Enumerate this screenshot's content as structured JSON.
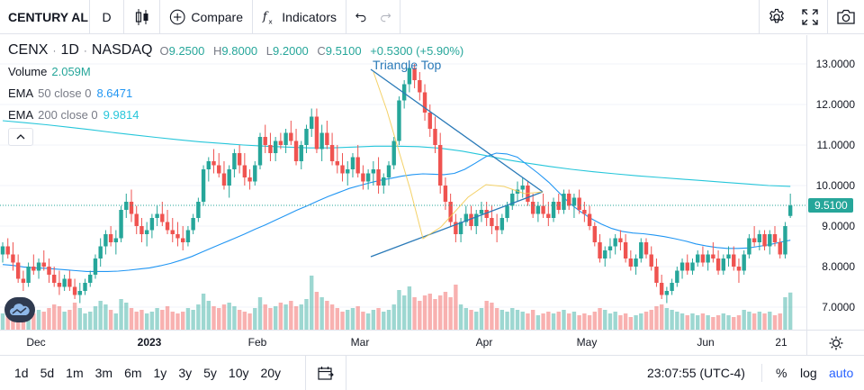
{
  "toolbar": {
    "symbol": "CENTURY AL",
    "interval": "D",
    "compare_label": "Compare",
    "indicators_label": "Indicators"
  },
  "legend": {
    "ticker": "CENX",
    "interval": "1D",
    "exchange": "NASDAQ",
    "open_key": "O",
    "open": "9.2500",
    "high_key": "H",
    "high": "9.8000",
    "low_key": "L",
    "low": "9.2000",
    "close_key": "C",
    "close": "9.5100",
    "change": "+0.5300 (+5.90%)",
    "volume_label": "Volume",
    "volume_value": "2.059M",
    "ema50_name": "EMA",
    "ema50_params": "50 close 0",
    "ema50_value": "8.6471",
    "ema200_name": "EMA",
    "ema200_params": "200 close 0",
    "ema200_value": "9.9814"
  },
  "drawing": {
    "label": "Triangle Top"
  },
  "price_axis": {
    "ticks": [
      "13.0000",
      "12.0000",
      "11.0000",
      "10.0000",
      "9.0000",
      "8.0000",
      "7.0000"
    ],
    "last_price": "9.5100"
  },
  "time_axis": {
    "ticks": [
      {
        "label": "Dec",
        "bold": false
      },
      {
        "label": "2023",
        "bold": true
      },
      {
        "label": "Feb",
        "bold": false
      },
      {
        "label": "Mar",
        "bold": false
      },
      {
        "label": "Apr",
        "bold": false
      },
      {
        "label": "May",
        "bold": false
      },
      {
        "label": "Jun",
        "bold": false
      },
      {
        "label": "21",
        "bold": false
      }
    ]
  },
  "bottom": {
    "ranges": [
      "1d",
      "5d",
      "1m",
      "3m",
      "6m",
      "1y",
      "3y",
      "5y",
      "10y",
      "20y"
    ],
    "clock": "23:07:55 (UTC-4)",
    "percent_label": "%",
    "log_label": "log",
    "auto_label": "auto"
  },
  "colors": {
    "up": "#26a69a",
    "down": "#ef5350",
    "ema50": "#2196f3",
    "ema200": "#26c6da",
    "accent": "#2962ff"
  },
  "chart_data": {
    "type": "candlestick",
    "ylim": [
      6.5,
      13.6
    ],
    "price_ticks": [
      13,
      12,
      11,
      10,
      9,
      8,
      7
    ],
    "candles": [
      [
        8.3,
        8.6,
        8.1,
        8.5
      ],
      [
        8.5,
        8.7,
        8.2,
        8.3
      ],
      [
        8.3,
        8.6,
        7.9,
        8.1
      ],
      [
        8.1,
        8.3,
        7.6,
        7.7
      ],
      [
        7.7,
        7.9,
        7.4,
        7.6
      ],
      [
        7.6,
        8.1,
        7.5,
        8.0
      ],
      [
        8.0,
        8.3,
        7.8,
        7.9
      ],
      [
        7.9,
        8.2,
        7.7,
        8.1
      ],
      [
        8.1,
        8.4,
        7.9,
        8.0
      ],
      [
        8.0,
        8.2,
        7.6,
        7.8
      ],
      [
        7.8,
        8.0,
        7.5,
        7.6
      ],
      [
        7.6,
        7.9,
        7.3,
        7.5
      ],
      [
        7.5,
        7.8,
        7.4,
        7.7
      ],
      [
        7.7,
        7.9,
        7.4,
        7.5
      ],
      [
        7.5,
        7.7,
        7.2,
        7.3
      ],
      [
        7.3,
        7.6,
        7.1,
        7.4
      ],
      [
        7.4,
        7.7,
        7.3,
        7.6
      ],
      [
        7.6,
        7.9,
        7.5,
        7.8
      ],
      [
        7.8,
        8.3,
        7.7,
        8.2
      ],
      [
        8.2,
        8.7,
        8.0,
        8.5
      ],
      [
        8.5,
        8.9,
        8.3,
        8.8
      ],
      [
        8.8,
        9.0,
        8.5,
        8.6
      ],
      [
        8.6,
        8.9,
        8.3,
        8.7
      ],
      [
        8.7,
        9.5,
        8.6,
        9.4
      ],
      [
        9.4,
        9.8,
        9.2,
        9.6
      ],
      [
        9.6,
        9.9,
        9.1,
        9.3
      ],
      [
        9.3,
        9.5,
        8.8,
        9.0
      ],
      [
        9.0,
        9.2,
        8.6,
        8.8
      ],
      [
        8.8,
        9.1,
        8.5,
        8.9
      ],
      [
        8.9,
        9.3,
        8.7,
        9.2
      ],
      [
        9.2,
        9.5,
        9.0,
        9.3
      ],
      [
        9.3,
        9.6,
        9.0,
        9.1
      ],
      [
        9.1,
        9.4,
        8.8,
        8.9
      ],
      [
        8.9,
        9.2,
        8.6,
        8.8
      ],
      [
        8.8,
        9.1,
        8.5,
        8.7
      ],
      [
        8.7,
        9.0,
        8.4,
        8.6
      ],
      [
        8.6,
        9.0,
        8.5,
        8.9
      ],
      [
        8.9,
        9.3,
        8.8,
        9.2
      ],
      [
        9.2,
        9.7,
        9.1,
        9.6
      ],
      [
        9.6,
        10.5,
        9.5,
        10.4
      ],
      [
        10.4,
        10.7,
        10.1,
        10.6
      ],
      [
        10.6,
        10.9,
        10.3,
        10.5
      ],
      [
        10.5,
        10.8,
        10.2,
        10.3
      ],
      [
        10.3,
        10.6,
        9.9,
        10.0
      ],
      [
        10.0,
        10.5,
        9.7,
        10.4
      ],
      [
        10.4,
        10.9,
        10.2,
        10.8
      ],
      [
        10.8,
        11.0,
        10.3,
        10.5
      ],
      [
        10.5,
        10.8,
        10.0,
        10.2
      ],
      [
        10.2,
        10.4,
        9.9,
        10.1
      ],
      [
        10.1,
        10.6,
        10.0,
        10.5
      ],
      [
        10.5,
        11.3,
        10.4,
        11.2
      ],
      [
        11.2,
        11.5,
        10.8,
        11.0
      ],
      [
        11.0,
        11.3,
        10.6,
        10.8
      ],
      [
        10.8,
        11.2,
        10.6,
        11.1
      ],
      [
        11.1,
        11.3,
        10.9,
        11.0
      ],
      [
        11.0,
        11.4,
        10.8,
        11.3
      ],
      [
        11.3,
        11.6,
        11.0,
        11.1
      ],
      [
        11.1,
        11.4,
        10.5,
        10.6
      ],
      [
        10.6,
        11.1,
        10.4,
        11.0
      ],
      [
        11.0,
        11.5,
        10.8,
        11.4
      ],
      [
        11.4,
        11.9,
        11.2,
        11.7
      ],
      [
        11.7,
        11.9,
        10.8,
        10.9
      ],
      [
        10.9,
        11.5,
        10.6,
        11.3
      ],
      [
        11.3,
        11.6,
        10.9,
        11.0
      ],
      [
        11.0,
        11.3,
        10.5,
        10.6
      ],
      [
        10.6,
        11.0,
        10.3,
        10.5
      ],
      [
        10.5,
        10.8,
        10.1,
        10.3
      ],
      [
        10.3,
        10.6,
        10.0,
        10.4
      ],
      [
        10.4,
        10.8,
        10.2,
        10.7
      ],
      [
        10.7,
        11.0,
        10.2,
        10.3
      ],
      [
        10.3,
        10.5,
        9.9,
        10.1
      ],
      [
        10.1,
        10.4,
        9.9,
        10.3
      ],
      [
        10.3,
        10.6,
        10.0,
        10.4
      ],
      [
        10.4,
        10.7,
        9.8,
        10.0
      ],
      [
        10.0,
        10.3,
        9.8,
        10.2
      ],
      [
        10.2,
        10.6,
        10.0,
        10.5
      ],
      [
        10.5,
        11.2,
        10.4,
        11.1
      ],
      [
        11.1,
        12.2,
        11.0,
        12.1
      ],
      [
        12.1,
        12.6,
        11.9,
        12.5
      ],
      [
        12.5,
        13.0,
        12.3,
        12.9
      ],
      [
        12.9,
        13.0,
        12.4,
        12.6
      ],
      [
        12.6,
        12.8,
        12.1,
        12.3
      ],
      [
        12.3,
        12.5,
        11.6,
        11.8
      ],
      [
        11.8,
        12.0,
        11.2,
        11.4
      ],
      [
        11.4,
        11.7,
        10.8,
        11.0
      ],
      [
        11.0,
        11.3,
        9.8,
        10.0
      ],
      [
        10.0,
        10.2,
        9.4,
        9.6
      ],
      [
        9.6,
        9.8,
        9.0,
        9.1
      ],
      [
        9.1,
        9.3,
        8.6,
        8.8
      ],
      [
        8.8,
        9.2,
        8.6,
        9.1
      ],
      [
        9.1,
        9.5,
        9.0,
        9.3
      ],
      [
        9.3,
        9.5,
        8.9,
        9.0
      ],
      [
        9.0,
        9.4,
        8.8,
        9.3
      ],
      [
        9.3,
        9.6,
        9.1,
        9.4
      ],
      [
        9.4,
        9.6,
        9.0,
        9.2
      ],
      [
        9.2,
        9.5,
        8.8,
        9.0
      ],
      [
        9.0,
        9.3,
        8.6,
        8.9
      ],
      [
        8.9,
        9.3,
        8.8,
        9.2
      ],
      [
        9.2,
        9.6,
        9.1,
        9.5
      ],
      [
        9.5,
        9.9,
        9.4,
        9.8
      ],
      [
        9.8,
        10.1,
        9.6,
        9.9
      ],
      [
        9.9,
        10.2,
        9.7,
        10.0
      ],
      [
        10.0,
        10.1,
        9.5,
        9.6
      ],
      [
        9.6,
        9.8,
        9.2,
        9.3
      ],
      [
        9.3,
        9.6,
        9.1,
        9.5
      ],
      [
        9.5,
        9.8,
        9.2,
        9.3
      ],
      [
        9.3,
        9.6,
        9.0,
        9.2
      ],
      [
        9.2,
        9.7,
        9.1,
        9.6
      ],
      [
        9.6,
        9.8,
        9.3,
        9.4
      ],
      [
        9.4,
        9.9,
        9.3,
        9.8
      ],
      [
        9.8,
        9.9,
        9.4,
        9.5
      ],
      [
        9.5,
        9.8,
        9.2,
        9.7
      ],
      [
        9.7,
        9.9,
        9.3,
        9.4
      ],
      [
        9.4,
        9.6,
        9.1,
        9.3
      ],
      [
        9.3,
        9.5,
        8.9,
        9.0
      ],
      [
        9.0,
        9.1,
        8.5,
        8.6
      ],
      [
        8.6,
        8.8,
        8.1,
        8.2
      ],
      [
        8.2,
        8.5,
        8.0,
        8.4
      ],
      [
        8.4,
        8.7,
        8.2,
        8.5
      ],
      [
        8.5,
        8.8,
        8.3,
        8.7
      ],
      [
        8.7,
        8.9,
        8.4,
        8.6
      ],
      [
        8.6,
        8.8,
        8.1,
        8.2
      ],
      [
        8.2,
        8.4,
        7.9,
        8.0
      ],
      [
        8.0,
        8.3,
        7.8,
        8.2
      ],
      [
        8.2,
        8.7,
        8.1,
        8.6
      ],
      [
        8.6,
        8.7,
        8.2,
        8.3
      ],
      [
        8.3,
        8.5,
        7.9,
        8.0
      ],
      [
        8.0,
        8.2,
        7.5,
        7.6
      ],
      [
        7.6,
        7.8,
        7.2,
        7.3
      ],
      [
        7.3,
        7.5,
        7.1,
        7.4
      ],
      [
        7.4,
        7.7,
        7.3,
        7.6
      ],
      [
        7.6,
        8.0,
        7.5,
        7.9
      ],
      [
        7.9,
        8.2,
        7.7,
        8.1
      ],
      [
        8.1,
        8.3,
        7.8,
        7.9
      ],
      [
        7.9,
        8.2,
        7.8,
        8.1
      ],
      [
        8.1,
        8.4,
        8.0,
        8.3
      ],
      [
        8.3,
        8.5,
        8.0,
        8.1
      ],
      [
        8.1,
        8.4,
        7.9,
        8.3
      ],
      [
        8.3,
        8.6,
        8.1,
        8.2
      ],
      [
        8.2,
        8.4,
        7.8,
        7.9
      ],
      [
        7.9,
        8.3,
        7.8,
        8.2
      ],
      [
        8.2,
        8.5,
        8.0,
        8.3
      ],
      [
        8.3,
        8.5,
        7.9,
        8.0
      ],
      [
        8.0,
        8.2,
        7.6,
        7.9
      ],
      [
        7.9,
        8.4,
        7.8,
        8.3
      ],
      [
        8.3,
        8.8,
        8.2,
        8.7
      ],
      [
        8.7,
        9.0,
        8.5,
        8.6
      ],
      [
        8.6,
        8.9,
        8.4,
        8.8
      ],
      [
        8.8,
        8.9,
        8.4,
        8.5
      ],
      [
        8.5,
        8.9,
        8.3,
        8.8
      ],
      [
        8.8,
        9.0,
        8.5,
        8.6
      ],
      [
        8.6,
        8.7,
        8.2,
        8.3
      ],
      [
        8.3,
        9.1,
        8.2,
        9.0
      ],
      [
        9.25,
        9.8,
        9.2,
        9.51
      ]
    ],
    "volume": [
      0.9,
      1.1,
      1.3,
      1.6,
      1.2,
      1.0,
      0.9,
      1.1,
      1.0,
      1.2,
      1.4,
      1.3,
      1.0,
      1.1,
      1.5,
      1.2,
      0.9,
      1.0,
      1.3,
      1.6,
      1.4,
      1.1,
      0.9,
      1.7,
      1.5,
      1.2,
      1.0,
      1.1,
      0.9,
      1.0,
      1.2,
      1.1,
      1.3,
      1.0,
      0.9,
      1.0,
      1.2,
      1.1,
      1.4,
      2.0,
      1.6,
      1.3,
      1.2,
      1.4,
      1.5,
      1.3,
      1.1,
      1.0,
      0.9,
      1.2,
      1.8,
      1.4,
      1.2,
      1.3,
      1.5,
      1.4,
      1.6,
      1.3,
      1.4,
      1.7,
      3.0,
      2.1,
      1.8,
      1.6,
      1.4,
      1.2,
      1.0,
      1.1,
      1.2,
      1.3,
      1.0,
      0.9,
      1.1,
      1.2,
      1.0,
      1.1,
      1.4,
      2.2,
      1.9,
      2.4,
      1.8,
      1.6,
      1.9,
      2.0,
      1.7,
      1.9,
      2.1,
      1.8,
      2.5,
      1.4,
      1.2,
      1.1,
      1.0,
      1.2,
      1.6,
      1.5,
      1.2,
      1.1,
      1.0,
      1.2,
      1.1,
      1.0,
      0.9,
      1.1,
      0.8,
      0.9,
      1.0,
      0.9,
      1.0,
      1.1,
      0.9,
      1.0,
      0.8,
      0.9,
      0.8,
      1.0,
      1.2,
      1.1,
      0.9,
      1.0,
      0.8,
      0.9,
      0.7,
      0.8,
      0.9,
      1.0,
      1.1,
      1.3,
      1.4,
      1.2,
      1.1,
      1.0,
      0.9,
      0.8,
      0.9,
      0.8,
      0.9,
      0.8,
      0.7,
      0.8,
      0.9,
      0.8,
      0.7,
      0.8,
      1.1,
      1.0,
      0.9,
      1.0,
      0.9,
      1.0,
      0.8,
      0.9,
      1.8,
      2.06
    ],
    "ema50": [
      8.05,
      8.03,
      7.99,
      7.97,
      7.96,
      7.94,
      7.92,
      7.9,
      7.88,
      7.88,
      7.88,
      7.89,
      7.91,
      7.94,
      7.97,
      8.02,
      8.08,
      8.16,
      8.25,
      8.36,
      8.47,
      8.58,
      8.69,
      8.8,
      8.92,
      9.03,
      9.15,
      9.27,
      9.39,
      9.5,
      9.62,
      9.73,
      9.83,
      9.93,
      10.0,
      10.07,
      10.13,
      10.18,
      10.23,
      10.27,
      10.29,
      10.28,
      10.27,
      10.3,
      10.4,
      10.55,
      10.71,
      10.8,
      10.78,
      10.7,
      10.5,
      10.3,
      10.08,
      9.82,
      9.56,
      9.36,
      9.19,
      9.05,
      8.94,
      8.87,
      8.83,
      8.81,
      8.78,
      8.74,
      8.69,
      8.63,
      8.56,
      8.51,
      8.47,
      8.45,
      8.45,
      8.46,
      8.5,
      8.54,
      8.6,
      8.65
    ],
    "ema200": [
      11.6,
      11.55,
      11.5,
      11.44,
      11.38,
      11.31,
      11.25,
      11.19,
      11.13,
      11.08,
      11.04,
      11.0,
      10.97,
      10.95,
      10.93,
      10.93,
      10.95,
      10.97,
      10.97,
      10.96,
      10.92,
      10.85,
      10.75,
      10.64,
      10.55,
      10.47,
      10.4,
      10.34,
      10.29,
      10.24,
      10.2,
      10.16,
      10.12,
      10.08,
      10.04,
      10.0,
      9.98
    ]
  }
}
